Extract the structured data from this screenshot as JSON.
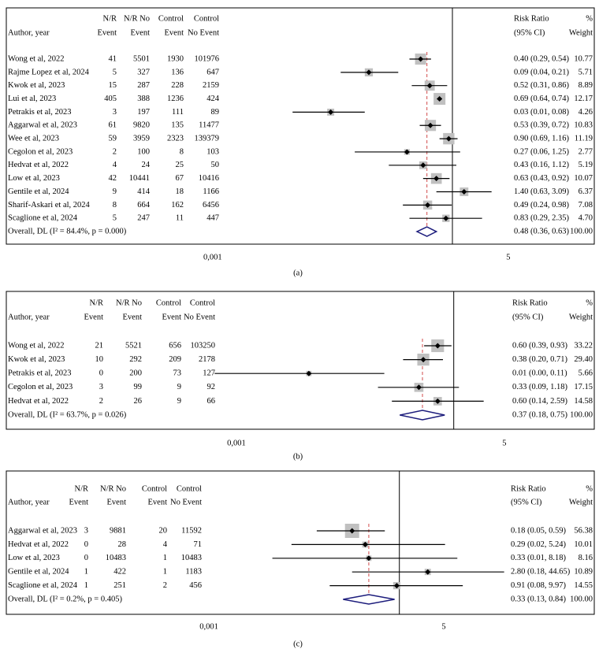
{
  "chart_data": [
    {
      "type": "forest",
      "caption": "(a)",
      "author_header": "Author, year",
      "columns": [
        [
          "N/R",
          "Event"
        ],
        [
          "N/R No",
          "Event"
        ],
        [
          "Control",
          "Event"
        ],
        [
          "Control",
          "No Event"
        ]
      ],
      "rr_header": [
        "Risk Ratio",
        "(95% CI)"
      ],
      "weight_header": [
        "%",
        "Weight"
      ],
      "studies": [
        {
          "name": "Wong et al, 2022",
          "counts": [
            41,
            5501,
            1930,
            101976
          ],
          "rr": 0.4,
          "lo": 0.29,
          "hi": 0.54,
          "ci_label": "0.40 (0.29, 0.54)",
          "weight": 10.77
        },
        {
          "name": "Rajme Lopez et al, 2024",
          "counts": [
            5,
            327,
            136,
            647
          ],
          "rr": 0.09,
          "lo": 0.04,
          "hi": 0.21,
          "ci_label": "0.09 (0.04, 0.21)",
          "weight": 5.71
        },
        {
          "name": "Kwok et al, 2023",
          "counts": [
            15,
            287,
            228,
            2159
          ],
          "rr": 0.52,
          "lo": 0.31,
          "hi": 0.86,
          "ci_label": "0.52 (0.31, 0.86)",
          "weight": 8.89
        },
        {
          "name": "Lui et al, 2023",
          "counts": [
            405,
            388,
            1236,
            424
          ],
          "rr": 0.69,
          "lo": 0.64,
          "hi": 0.74,
          "ci_label": "0.69 (0.64, 0.74)",
          "weight": 12.17
        },
        {
          "name": "Petrakis et al, 2023",
          "counts": [
            3,
            197,
            111,
            89
          ],
          "rr": 0.03,
          "lo": 0.01,
          "hi": 0.08,
          "ci_label": "0.03 (0.01, 0.08)",
          "weight": 4.26
        },
        {
          "name": "Aggarwal et al, 2023",
          "counts": [
            61,
            9820,
            135,
            11477
          ],
          "rr": 0.53,
          "lo": 0.39,
          "hi": 0.72,
          "ci_label": "0.53 (0.39, 0.72)",
          "weight": 10.83
        },
        {
          "name": "Wee et al, 2023",
          "counts": [
            59,
            3959,
            2323,
            139379
          ],
          "rr": 0.9,
          "lo": 0.69,
          "hi": 1.16,
          "ci_label": "0.90 (0.69, 1.16)",
          "weight": 11.19
        },
        {
          "name": "Cegolon et al, 2023",
          "counts": [
            2,
            100,
            8,
            103
          ],
          "rr": 0.27,
          "lo": 0.06,
          "hi": 1.25,
          "ci_label": "0.27 (0.06, 1.25)",
          "weight": 2.77
        },
        {
          "name": "Hedvat et al, 2022",
          "counts": [
            4,
            24,
            25,
            50
          ],
          "rr": 0.43,
          "lo": 0.16,
          "hi": 1.12,
          "ci_label": "0.43 (0.16, 1.12)",
          "weight": 5.19
        },
        {
          "name": "Low et al, 2023",
          "counts": [
            42,
            10441,
            67,
            10416
          ],
          "rr": 0.63,
          "lo": 0.43,
          "hi": 0.92,
          "ci_label": "0.63 (0.43, 0.92)",
          "weight": 10.07
        },
        {
          "name": "Gentile et al, 2024",
          "counts": [
            9,
            414,
            18,
            1166
          ],
          "rr": 1.4,
          "lo": 0.63,
          "hi": 3.09,
          "ci_label": "1.40 (0.63, 3.09)",
          "weight": 6.37
        },
        {
          "name": "Sharif-Askari et al, 2024",
          "counts": [
            8,
            664,
            162,
            6456
          ],
          "rr": 0.49,
          "lo": 0.24,
          "hi": 0.98,
          "ci_label": "0.49 (0.24, 0.98)",
          "weight": 7.08
        },
        {
          "name": "Scaglione et al, 2024",
          "counts": [
            5,
            247,
            11,
            447
          ],
          "rr": 0.83,
          "lo": 0.29,
          "hi": 2.35,
          "ci_label": "0.83 (0.29, 2.35)",
          "weight": 4.7,
          "weight_label": "4.70"
        }
      ],
      "overall": {
        "name": "Overall, DL (I² = 84.4%, p = 0.000)",
        "rr": 0.48,
        "lo": 0.36,
        "hi": 0.63,
        "ci_label": "0.48 (0.36, 0.63)",
        "weight_label": "100.00"
      },
      "xlim": [
        0.0005,
        10
      ],
      "xticks": [
        {
          "value": 0.001,
          "label": "0,001"
        },
        5
      ],
      "log_x": true,
      "reference_line": 1,
      "box_color": "#c0c0c0",
      "diamond_color": "#1c1c7c",
      "overall_line_color": "#d24a4a"
    },
    {
      "type": "forest",
      "caption": "(b)",
      "author_header": "Author, year",
      "columns": [
        [
          "N/R",
          "Event"
        ],
        [
          "N/R No",
          "Event"
        ],
        [
          "Control",
          "Event"
        ],
        [
          "Control",
          "No Event"
        ]
      ],
      "rr_header": [
        "Risk Ratio",
        "(95% CI)"
      ],
      "weight_header": [
        "%",
        "Weight"
      ],
      "studies": [
        {
          "name": "Wong et al, 2022",
          "counts": [
            21,
            5521,
            656,
            103250
          ],
          "rr": 0.6,
          "lo": 0.39,
          "hi": 0.93,
          "ci_label": "0.60 (0.39, 0.93)",
          "weight": 33.22
        },
        {
          "name": "Kwok et al, 2023",
          "counts": [
            10,
            292,
            209,
            2178
          ],
          "rr": 0.38,
          "lo": 0.2,
          "hi": 0.71,
          "ci_label": "0.38 (0.20, 0.71)",
          "weight": 29.4,
          "weight_label": "29.40"
        },
        {
          "name": "Petrakis et al, 2023",
          "counts": [
            0,
            200,
            73,
            127
          ],
          "rr": 0.01,
          "lo": 0.0,
          "hi": 0.11,
          "ci_label": "0.01 (0.00, 0.11)",
          "weight": 5.66
        },
        {
          "name": "Cegolon et al, 2023",
          "counts": [
            3,
            99,
            9,
            92
          ],
          "rr": 0.33,
          "lo": 0.09,
          "hi": 1.18,
          "ci_label": "0.33 (0.09, 1.18)",
          "weight": 17.15
        },
        {
          "name": "Hedvat et al, 2022",
          "counts": [
            2,
            26,
            9,
            66
          ],
          "rr": 0.6,
          "lo": 0.14,
          "hi": 2.59,
          "ci_label": "0.60 (0.14, 2.59)",
          "weight": 14.58
        }
      ],
      "overall": {
        "name": "Overall, DL (I² = 63.7%, p = 0.026)",
        "rr": 0.37,
        "lo": 0.18,
        "hi": 0.75,
        "ci_label": "0.37 (0.18, 0.75)",
        "weight_label": "100.00"
      },
      "xlim": [
        0.0005,
        10
      ],
      "xticks": [
        {
          "value": 0.001,
          "label": "0,001"
        },
        5
      ],
      "log_x": true,
      "reference_line": 1,
      "box_color": "#c0c0c0",
      "diamond_color": "#1c1c7c",
      "overall_line_color": "#d24a4a"
    },
    {
      "type": "forest",
      "caption": "(c)",
      "author_header": "Author, year",
      "columns": [
        [
          "N/R",
          "Event"
        ],
        [
          "N/R No",
          "Event"
        ],
        [
          "Control",
          "Event"
        ],
        [
          "Control",
          "No Event"
        ]
      ],
      "rr_header": [
        "Risk Ratio",
        "(95% CI)"
      ],
      "weight_header": [
        "%",
        "Weight"
      ],
      "studies": [
        {
          "name": "Aggarwal et al, 2023",
          "counts": [
            3,
            9881,
            20,
            11592
          ],
          "rr": 0.18,
          "lo": 0.05,
          "hi": 0.59,
          "ci_label": "0.18 (0.05, 0.59)",
          "weight": 56.38
        },
        {
          "name": "Hedvat et al, 2022",
          "counts": [
            0,
            28,
            4,
            71
          ],
          "rr": 0.29,
          "lo": 0.02,
          "hi": 5.24,
          "ci_label": "0.29 (0.02, 5.24)",
          "weight": 10.01
        },
        {
          "name": "Low et al, 2023",
          "counts": [
            0,
            10483,
            1,
            10483
          ],
          "rr": 0.33,
          "lo": 0.01,
          "hi": 8.18,
          "ci_label": "0.33 (0.01, 8.18)",
          "weight": 8.16
        },
        {
          "name": "Gentile et al, 2024",
          "counts": [
            1,
            422,
            1,
            1183
          ],
          "rr": 2.8,
          "lo": 0.18,
          "hi": 44.65,
          "ci_label": "2.80 (0.18, 44.65)",
          "weight": 10.89
        },
        {
          "name": "Scaglione et al, 2024",
          "counts": [
            1,
            251,
            2,
            456
          ],
          "rr": 0.91,
          "lo": 0.08,
          "hi": 9.97,
          "ci_label": "0.91 (0.08, 9.97)",
          "weight": 14.55
        }
      ],
      "overall": {
        "name": "Overall, DL (I² = 0.2%, p = 0.405)",
        "rr": 0.33,
        "lo": 0.13,
        "hi": 0.84,
        "ci_label": "0.33 (0.13, 0.84)",
        "weight_label": "100.00"
      },
      "xlim": [
        0.001,
        50
      ],
      "xticks": [
        {
          "value": 0.001,
          "label": "0,001"
        },
        5
      ],
      "log_x": true,
      "reference_line": 1,
      "box_color": "#c0c0c0",
      "diamond_color": "#1c1c7c",
      "overall_line_color": "#d24a4a"
    }
  ]
}
